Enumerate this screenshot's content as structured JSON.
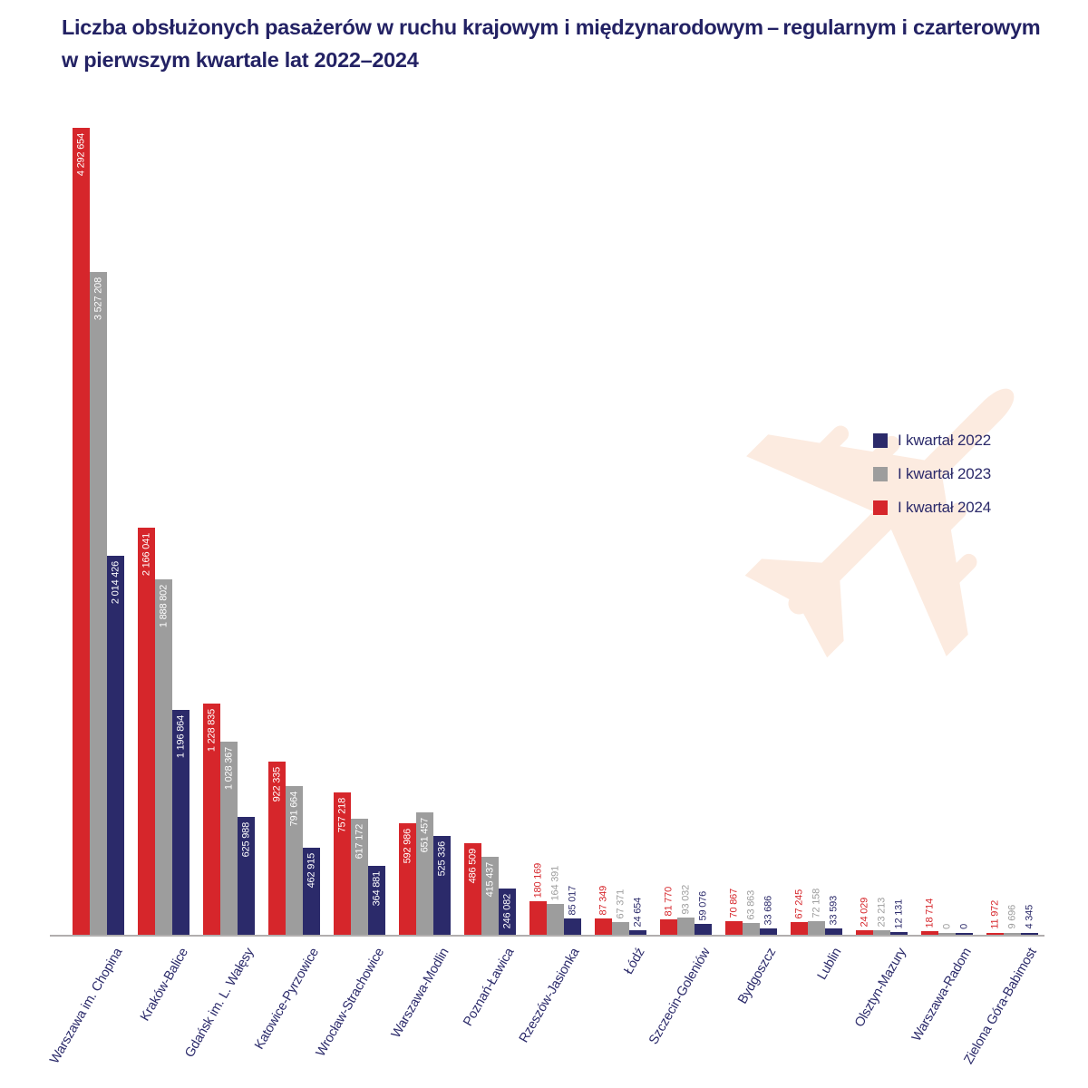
{
  "title": {
    "line1": "Liczba obsłużonych pasażerów w ruchu krajowym i międzynarodowym – regularnym i czarterowym",
    "line2": "w pierwszym kwartale lat 2022–2024"
  },
  "legend": {
    "items": [
      {
        "label": "I kwartał 2022",
        "color": "#2b2a6a"
      },
      {
        "label": "I kwartał 2023",
        "color": "#9d9d9d"
      },
      {
        "label": "I kwartał 2024",
        "color": "#d6262b"
      }
    ]
  },
  "colors": {
    "navy": "#2b2a6a",
    "gray": "#9d9d9d",
    "red": "#d6262b",
    "title_text": "#232264",
    "axis": "#b1aeae",
    "watermark": "#fcebe0",
    "background": "#ffffff",
    "value_label_inside": "#ffffff"
  },
  "watermark": {
    "name": "airplane-silhouette"
  },
  "chart_data": {
    "type": "bar",
    "title": "Liczba obsłużonych pasażerów w ruchu krajowym i międzynarodowym – regularnym i czarterowym w pierwszym kwartale lat 2022–2024",
    "xlabel": "",
    "ylabel": "",
    "grid": false,
    "legend_position": "middle-right",
    "value_label_format": "space-separated thousands, rotated 90°",
    "ylim": [
      0,
      4292654
    ],
    "categories": [
      "Warszawa im. Chopina",
      "Kraków-Balice",
      "Gdańsk im. L. Wałęsy",
      "Katowice-Pyrzowice",
      "Wrocław-Strachowice",
      "Warszawa-Modlin",
      "Poznań-Ławica",
      "Rzeszów-Jasionka",
      "Łódź",
      "Szczecin-Goleniów",
      "Bydgoszcz",
      "Lublin",
      "Olsztyn-Mazury",
      "Warszawa-Radom",
      "Zielona Góra-Babimost"
    ],
    "series": [
      {
        "name": "I kwartał 2022",
        "color": "#2b2a6a",
        "values": [
          2014426,
          1196864,
          625988,
          462915,
          364881,
          525336,
          246082,
          85017,
          24654,
          59076,
          33686,
          33593,
          12131,
          0,
          4345
        ]
      },
      {
        "name": "I kwartał 2023",
        "color": "#9d9d9d",
        "values": [
          3527208,
          1888802,
          1028367,
          791664,
          617172,
          651457,
          415437,
          164391,
          67371,
          93032,
          63863,
          72158,
          23213,
          0,
          9696
        ]
      },
      {
        "name": "I kwartał 2024",
        "color": "#d6262b",
        "values": [
          4292654,
          2166041,
          1228835,
          922335,
          757218,
          592986,
          486509,
          180169,
          87349,
          81770,
          70867,
          67245,
          24029,
          18714,
          11972
        ]
      }
    ],
    "display_order": [
      "I kwartał 2024",
      "I kwartał 2023",
      "I kwartał 2022"
    ]
  }
}
